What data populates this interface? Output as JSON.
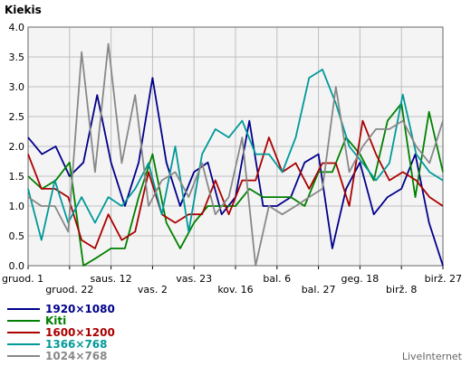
{
  "chart_data": {
    "type": "line",
    "title": "Kiekis",
    "ylim": [
      0,
      4
    ],
    "yticks": [
      "0.0",
      "0.5",
      "1.0",
      "1.5",
      "2.0",
      "2.5",
      "3.0",
      "3.5",
      "4.0"
    ],
    "xticks_row1": [
      "gruod. 1",
      "saus. 12",
      "vas. 23",
      "bal. 6",
      "geg. 18",
      "birž. 27"
    ],
    "xticks_row2": [
      "gruod. 22",
      "vas. 2",
      "kov. 16",
      "bal. 27",
      "birž. 8"
    ],
    "grid": true,
    "legend_position": "bottom-left",
    "series": [
      {
        "name": "1920×1080",
        "color": "#00008b",
        "values": [
          2.15,
          1.87,
          2.0,
          1.5,
          1.73,
          2.86,
          1.73,
          1.0,
          1.73,
          3.15,
          1.73,
          1.0,
          1.57,
          1.73,
          0.86,
          1.15,
          2.43,
          1.0,
          1.0,
          1.15,
          1.73,
          1.87,
          0.29,
          1.29,
          1.73,
          0.86,
          1.15,
          1.29,
          1.87,
          0.72,
          0.0
        ]
      },
      {
        "name": "Kiti",
        "color": "#008000",
        "values": [
          1.5,
          1.29,
          1.43,
          1.73,
          0.0,
          0.14,
          0.29,
          0.29,
          1.15,
          1.87,
          0.72,
          0.29,
          0.72,
          1.0,
          1.0,
          1.0,
          1.29,
          1.15,
          1.15,
          1.15,
          1.0,
          1.57,
          1.57,
          2.15,
          1.87,
          1.43,
          2.43,
          2.72,
          1.15,
          2.58,
          1.57
        ]
      },
      {
        "name": "1600×1200",
        "color": "#aa0000",
        "values": [
          1.87,
          1.29,
          1.29,
          1.15,
          0.43,
          0.29,
          0.86,
          0.43,
          0.57,
          1.57,
          0.86,
          0.72,
          0.86,
          0.86,
          1.43,
          0.86,
          1.43,
          1.43,
          2.15,
          1.57,
          1.72,
          1.29,
          1.72,
          1.72,
          1.0,
          2.43,
          1.87,
          1.43,
          1.57,
          1.43,
          1.15,
          1.0
        ]
      },
      {
        "name": "1366×768",
        "color": "#009999",
        "values": [
          1.29,
          0.43,
          1.43,
          0.72,
          1.15,
          0.72,
          1.15,
          1.0,
          1.29,
          1.72,
          0.86,
          2.0,
          0.57,
          1.87,
          2.29,
          2.15,
          2.43,
          1.87,
          1.87,
          1.57,
          2.15,
          3.15,
          3.29,
          2.72,
          2.0,
          1.72,
          1.43,
          1.72,
          2.87,
          1.87,
          1.57,
          1.43
        ]
      },
      {
        "name": "1024×768",
        "color": "#888888",
        "values": [
          1.15,
          1.0,
          1.0,
          0.57,
          3.58,
          1.57,
          3.72,
          1.72,
          2.86,
          1.0,
          1.43,
          1.57,
          1.15,
          1.72,
          0.86,
          1.15,
          2.15,
          0.0,
          1.0,
          0.86,
          1.0,
          1.15,
          1.29,
          3.0,
          1.57,
          2.0,
          2.29,
          2.29,
          2.43,
          2.0,
          1.72,
          2.43
        ]
      }
    ]
  },
  "credit": "LiveInternet"
}
